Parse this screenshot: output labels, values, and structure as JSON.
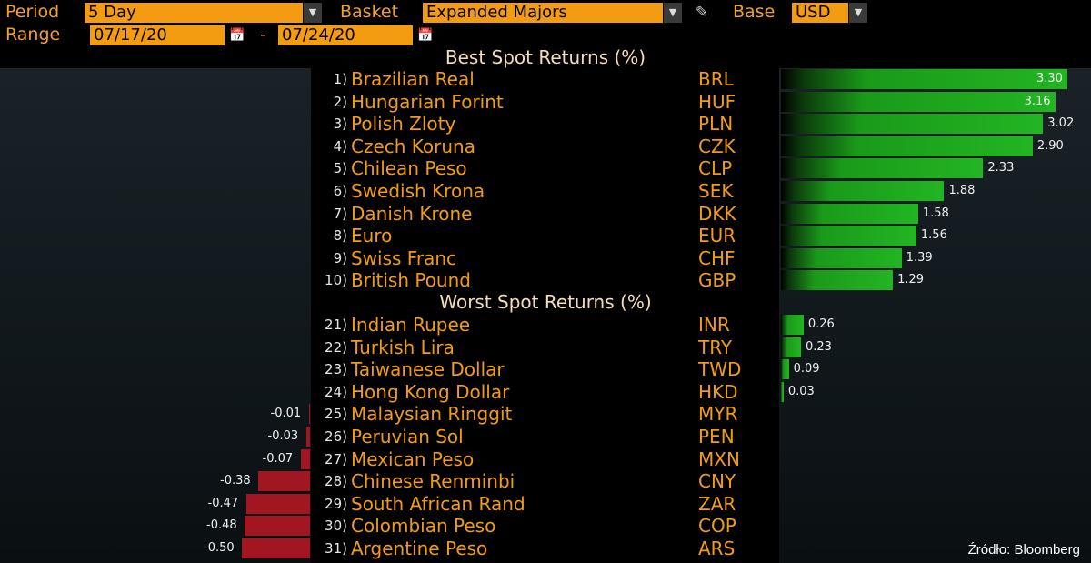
{
  "header": {
    "period_label": "Period",
    "period_value": "5 Day",
    "basket_label": "Basket",
    "basket_value": "Expanded Majors",
    "base_label": "Base",
    "base_value": "USD",
    "range_label": "Range",
    "range_from": "07/17/20",
    "range_sep": "-",
    "range_to": "07/24/20"
  },
  "best_title": "Best Spot Returns (%)",
  "worst_title": "Worst Spot Returns (%)",
  "source": "Źródło: Bloomberg",
  "chart_data": {
    "type": "bar",
    "best": [
      {
        "rank": "1)",
        "name": "Brazilian Real",
        "code": "BRL",
        "value": 3.3,
        "label": "3.30"
      },
      {
        "rank": "2)",
        "name": "Hungarian Forint",
        "code": "HUF",
        "value": 3.16,
        "label": "3.16"
      },
      {
        "rank": "3)",
        "name": "Polish Zloty",
        "code": "PLN",
        "value": 3.02,
        "label": "3.02"
      },
      {
        "rank": "4)",
        "name": "Czech Koruna",
        "code": "CZK",
        "value": 2.9,
        "label": "2.90"
      },
      {
        "rank": "5)",
        "name": "Chilean Peso",
        "code": "CLP",
        "value": 2.33,
        "label": "2.33"
      },
      {
        "rank": "6)",
        "name": "Swedish Krona",
        "code": "SEK",
        "value": 1.88,
        "label": "1.88"
      },
      {
        "rank": "7)",
        "name": "Danish Krone",
        "code": "DKK",
        "value": 1.58,
        "label": "1.58"
      },
      {
        "rank": "8)",
        "name": "Euro",
        "code": "EUR",
        "value": 1.56,
        "label": "1.56"
      },
      {
        "rank": "9)",
        "name": "Swiss Franc",
        "code": "CHF",
        "value": 1.39,
        "label": "1.39"
      },
      {
        "rank": "10)",
        "name": "British Pound",
        "code": "GBP",
        "value": 1.29,
        "label": "1.29"
      }
    ],
    "worst": [
      {
        "rank": "21)",
        "name": "Indian Rupee",
        "code": "INR",
        "value": 0.26,
        "label": "0.26"
      },
      {
        "rank": "22)",
        "name": "Turkish Lira",
        "code": "TRY",
        "value": 0.23,
        "label": "0.23"
      },
      {
        "rank": "23)",
        "name": "Taiwanese Dollar",
        "code": "TWD",
        "value": 0.09,
        "label": "0.09"
      },
      {
        "rank": "24)",
        "name": "Hong Kong Dollar",
        "code": "HKD",
        "value": 0.03,
        "label": "0.03"
      },
      {
        "rank": "25)",
        "name": "Malaysian Ringgit",
        "code": "MYR",
        "value": -0.01,
        "label": "-0.01"
      },
      {
        "rank": "26)",
        "name": "Peruvian Sol",
        "code": "PEN",
        "value": -0.03,
        "label": "-0.03"
      },
      {
        "rank": "27)",
        "name": "Mexican Peso",
        "code": "MXN",
        "value": -0.07,
        "label": "-0.07"
      },
      {
        "rank": "28)",
        "name": "Chinese Renminbi",
        "code": "CNY",
        "value": -0.38,
        "label": "-0.38"
      },
      {
        "rank": "29)",
        "name": "South African Rand",
        "code": "ZAR",
        "value": -0.47,
        "label": "-0.47"
      },
      {
        "rank": "30)",
        "name": "Colombian Peso",
        "code": "COP",
        "value": -0.48,
        "label": "-0.48"
      },
      {
        "rank": "31)",
        "name": "Argentine Peso",
        "code": "ARS",
        "value": -0.5,
        "label": "-0.50"
      }
    ]
  },
  "colors": {
    "positive": "#22b522",
    "negative": "#a11620",
    "accent": "#f39c12"
  }
}
